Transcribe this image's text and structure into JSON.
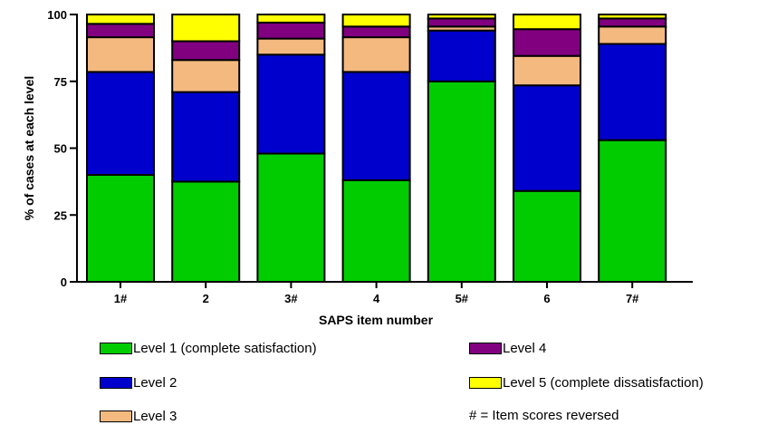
{
  "chart_data": {
    "type": "bar",
    "stacked": true,
    "xlabel": "SAPS item number",
    "ylabel": "% of cases at each level",
    "ylim": [
      0,
      100
    ],
    "yticks": [
      "0",
      "25",
      "50",
      "75",
      "100"
    ],
    "categories": [
      "1#",
      "2",
      "3#",
      "4",
      "5#",
      "6",
      "7#"
    ],
    "series": [
      {
        "name": "Level 1 (complete satisfaction)",
        "color": "#00cc00",
        "values": [
          40,
          37.5,
          48,
          38,
          75,
          34,
          53
        ]
      },
      {
        "name": "Level 2",
        "color": "#0000cc",
        "values": [
          38.5,
          33.5,
          37,
          40.5,
          19,
          39.5,
          36
        ]
      },
      {
        "name": "Level 3",
        "color": "#f4b97f",
        "values": [
          13,
          12,
          6,
          13,
          1.5,
          11,
          6.5
        ]
      },
      {
        "name": "Level 4",
        "color": "#800080",
        "values": [
          5,
          7,
          6,
          4,
          3,
          10,
          3
        ]
      },
      {
        "name": "Level 5 (complete dissatisfaction)",
        "color": "#ffff00",
        "values": [
          3.5,
          10,
          3,
          4.5,
          1.5,
          5.5,
          1.5
        ]
      }
    ],
    "grid": false,
    "legend_position": "bottom",
    "note": "# = Item scores reversed"
  }
}
